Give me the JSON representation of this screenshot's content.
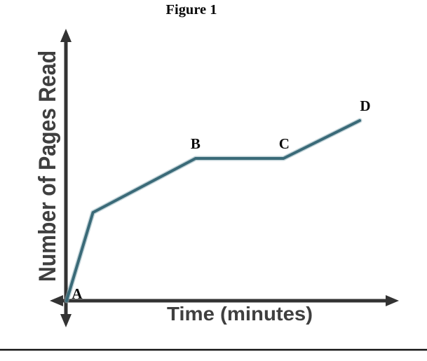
{
  "figure": {
    "title": "Figure 1",
    "x_axis_label": "Time (minutes)",
    "y_axis_label": "Number of Pages Read"
  },
  "colors": {
    "curve": "#3a6a78",
    "curve_halo": "#93b2bb",
    "axis": "#333333",
    "axis_label_text": "#3f3f3f",
    "point_label_text": "#0a0a0a",
    "divider": "#141414",
    "background": "#ffffff"
  },
  "chart_data": {
    "type": "line",
    "title": "Figure 1",
    "xlabel": "Time (minutes)",
    "ylabel": "Number of Pages Read",
    "tick_labels": "none (qualitative sketch graph, unnumbered axes)",
    "grid": false,
    "legend": "none",
    "xlim": [
      0,
      11.5
    ],
    "ylim": [
      0,
      11.5
    ],
    "series_name": "pages read over time",
    "points": [
      {
        "label": "A",
        "x": 0,
        "y": 0,
        "note": "origin, start of reading"
      },
      {
        "label": "",
        "x": 0.9,
        "y": 4.9,
        "note": "unlabeled bend, steep initial rate ends"
      },
      {
        "label": "B",
        "x": 4.4,
        "y": 7.9,
        "note": "start of flat plateau (no pages read)"
      },
      {
        "label": "C",
        "x": 7.4,
        "y": 7.9,
        "note": "end of flat plateau, reading resumes"
      },
      {
        "label": "D",
        "x": 10,
        "y": 10,
        "note": "end of graph"
      }
    ]
  }
}
